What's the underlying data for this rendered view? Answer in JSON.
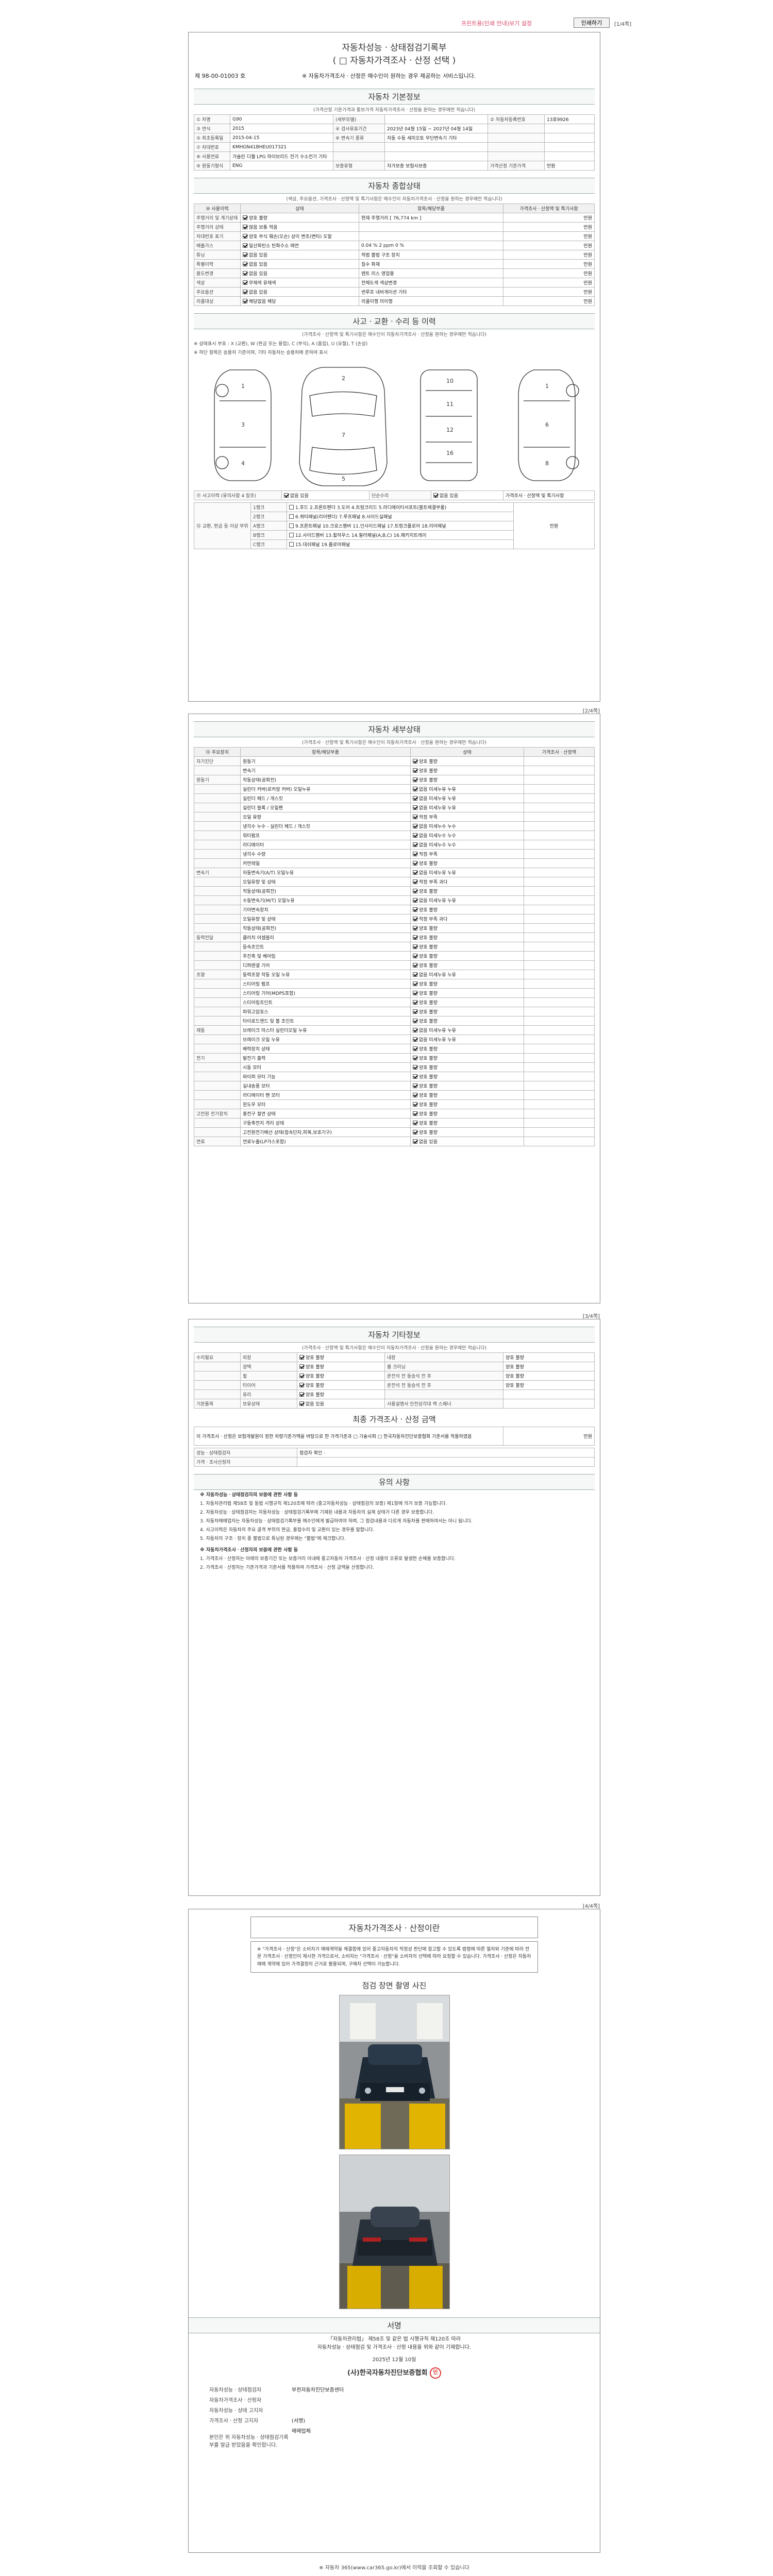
{
  "topbar": {
    "link": "프린트용(인쇄 안내)보기 설정",
    "print_button": "인쇄하기",
    "page_marker": "[1/4쪽]"
  },
  "page1": {
    "title_line1": "자동차성능ㆍ상태점검기록부",
    "title_line2": "( □ 자동차가격조사ㆍ산정 선택 )",
    "doc_no": "제   98-00-01003  호",
    "notice": "※ 자동차가격조사ㆍ산정은 매수인이 원하는 경우 제공하는 서비스입니다.",
    "basic": {
      "head": "자동차 기본정보",
      "sub": "(가격산정 기준가격과 통보가격 자동차가격조사ㆍ산정을 원하는 경우에만 적습니다)",
      "rows": [
        {
          "k": "① 차명",
          "v": "G90",
          "k2": "(세부모델)",
          "v2": "",
          "k3": "② 자동차등록번호",
          "v3": "13호9926"
        },
        {
          "k": "③ 연식",
          "v": "2015",
          "k2": "④ 검사유효기간",
          "v2": "2023년 04월 15일 ~ 2027년 04월 14일",
          "k3": "",
          "v3": ""
        },
        {
          "k": "⑤ 최초등록일",
          "v": "2015-04-15",
          "k2": "⑥ 변속기 종류",
          "v2": "자동  수동  세미오토  무단변속기  기타",
          "k3": "",
          "v3": ""
        },
        {
          "k": "⑦ 차대번호",
          "v": "KMHGN41BHEU017321",
          "k2": "",
          "v2": "",
          "k3": "",
          "v3": ""
        },
        {
          "k": "⑧ 사용연료",
          "v": "가솔린  디젤  LPG  하이브리드  전기  수소전기  기타",
          "k2": "",
          "v2": "",
          "k3": "",
          "v3": ""
        },
        {
          "k": "⑨ 원동기형식",
          "v": "ENG",
          "k2": "보증유형",
          "v2": "자가보증  보험사보증",
          "k3": "가격산정 기준가격",
          "v3": "만원"
        }
      ]
    },
    "summary": {
      "head": "자동차 종합상태",
      "sub": "(색상, 주요옵션, 가격조사ㆍ산정액 및 특기사항은 매수인이 자동차가격조사ㆍ산정을 원하는 경우에만 적습니다)",
      "cols": [
        "⑩ 사용이력",
        "상태",
        "항목/해당부품",
        "가격조사ㆍ산정액 및 특기사항"
      ],
      "rows": [
        {
          "k": "주행거리 및 계기상태",
          "s": "양호  불량",
          "d": "현재 주행거리 [ 76,774 km ]",
          "r": "만원"
        },
        {
          "k": "주행거리 상태",
          "s": "많음  보통  적음",
          "d": "",
          "r": "만원"
        },
        {
          "k": "차대번호 표기",
          "s": "양호  부식  훼손(오손)  상이  변조(변타)  도말",
          "d": "",
          "r": "만원"
        },
        {
          "k": "배출가스",
          "s": "일산화탄소  탄화수소  매연",
          "d": "0.04 %   2 ppm   0 %",
          "r": "만원"
        },
        {
          "k": "튜닝",
          "s": "없음  있음",
          "d": "적법  불법  구조  장치",
          "r": "만원"
        },
        {
          "k": "특별이력",
          "s": "없음  있음",
          "d": "침수  화재",
          "r": "만원"
        },
        {
          "k": "용도변경",
          "s": "없음  있음",
          "d": "렌트  리스  영업용",
          "r": "만원"
        },
        {
          "k": "색상",
          "s": "무채색  유채색",
          "d": "전체도색  색상변경",
          "r": "만원"
        },
        {
          "k": "주요옵션",
          "s": "없음  있음",
          "d": "썬루프  내비게이션  기타",
          "r": "만원"
        },
        {
          "k": "리콜대상",
          "s": "해당없음  해당",
          "d": "리콜이행  미이행",
          "r": "만원"
        }
      ]
    },
    "accident": {
      "head": "사고ㆍ교환ㆍ수리 등 이력",
      "sub": "(가격조사ㆍ산정액 및 특기사항은 매수인이 자동차가격조사ㆍ산정을 원하는 경우에만 적습니다)",
      "legend1": "※ 상태표시 부호 : X (교환), W (판금 또는 용접), C (부식), A (흠집), U (요철), T (손상)",
      "legend2": "※ 하단 항목은 승용차 기준이며, 기타 자동차는 승용차에 준하여 표시",
      "history_label": "⑪ 사고이력 (유의사항 4 참조)",
      "history": "없음  있음",
      "simple": "단순수리",
      "simple_val": "없음  있음",
      "rank_label": "⑫ 교환, 판금 등 이상 부위",
      "right_head": "가격조사ㆍ산정액 및 특기사항",
      "ranks": [
        {
          "k": "1랭크",
          "v": "1.후드  2.프론트펜더  3.도어  4.트렁크리드  5.라디에이터서포트(볼트체결부품)"
        },
        {
          "k": "2랭크",
          "v": "6.쿼터패널(리어펜더)  7.루프패널  8.사이드실패널"
        },
        {
          "k": "A랭크",
          "v": "9.프론트패널  10.크로스멤버  11.인사이드패널  17.트렁크플로어  18.리어패널"
        },
        {
          "k": "B랭크",
          "v": "12.사이드멤버  13.휠하우스  14.필러패널(A,B,C)  16.패키지트레이"
        },
        {
          "k": "C랭크",
          "v": "15.대쉬패널  19.플로어패널"
        }
      ],
      "manwon": "만원"
    }
  },
  "page2": {
    "marker": "[2/4쪽]",
    "head": "자동차 세부상태",
    "sub": "(가격조사ㆍ산정액 및 특기사항은 매수인이 자동차가격조사ㆍ산정을 원하는 경우에만 적습니다)",
    "cols": [
      "⑬ 주요장치",
      "항목/해당부품",
      "상태",
      "가격조사ㆍ산정액"
    ],
    "rows": [
      {
        "g": "자기진단",
        "i": "원동기",
        "s": "양호  불량"
      },
      {
        "g": "",
        "i": "변속기",
        "s": "양호  불량"
      },
      {
        "g": "원동기",
        "i": "작동상태(공회전)",
        "s": "양호  불량"
      },
      {
        "g": "",
        "i": "실린더 커버(로커암 커버) 오일누유",
        "s": "없음  미세누유  누유"
      },
      {
        "g": "",
        "i": "실린더 헤드 / 개스킷",
        "s": "없음  미세누유  누유"
      },
      {
        "g": "",
        "i": "실린더 블록 / 오일팬",
        "s": "없음  미세누유  누유"
      },
      {
        "g": "",
        "i": "오일 유량",
        "s": "적정  부족"
      },
      {
        "g": "",
        "i": "냉각수 누수 - 실린더 헤드 / 개스킷",
        "s": "없음  미세누수  누수"
      },
      {
        "g": "",
        "i": "워터펌프",
        "s": "없음  미세누수  누수"
      },
      {
        "g": "",
        "i": "라디에이터",
        "s": "없음  미세누수  누수"
      },
      {
        "g": "",
        "i": "냉각수 수량",
        "s": "적정  부족"
      },
      {
        "g": "",
        "i": "커먼레일",
        "s": "양호  불량"
      },
      {
        "g": "변속기",
        "i": "자동변속기(A/T) 오일누유",
        "s": "없음  미세누유  누유"
      },
      {
        "g": "",
        "i": "오일유량 및 상태",
        "s": "적정  부족  과다"
      },
      {
        "g": "",
        "i": "작동상태(공회전)",
        "s": "양호  불량"
      },
      {
        "g": "",
        "i": "수동변속기(M/T) 오일누유",
        "s": "없음  미세누유  누유"
      },
      {
        "g": "",
        "i": "기어변속장치",
        "s": "양호  불량"
      },
      {
        "g": "",
        "i": "오일유량 및 상태",
        "s": "적정  부족  과다"
      },
      {
        "g": "",
        "i": "작동상태(공회전)",
        "s": "양호  불량"
      },
      {
        "g": "동력전달",
        "i": "클러치 어셈블리",
        "s": "양호  불량"
      },
      {
        "g": "",
        "i": "등속조인트",
        "s": "양호  불량"
      },
      {
        "g": "",
        "i": "추진축 및 베어링",
        "s": "양호  불량"
      },
      {
        "g": "",
        "i": "디퍼렌셜 기어",
        "s": "양호  불량"
      },
      {
        "g": "조향",
        "i": "동력조향 작동 오일 누유",
        "s": "없음  미세누유  누유"
      },
      {
        "g": "",
        "i": "스티어링 펌프",
        "s": "양호  불량"
      },
      {
        "g": "",
        "i": "스티어링 기어(MDPS포함)",
        "s": "양호  불량"
      },
      {
        "g": "",
        "i": "스티어링조인트",
        "s": "양호  불량"
      },
      {
        "g": "",
        "i": "파워고압호스",
        "s": "양호  불량"
      },
      {
        "g": "",
        "i": "타이로드엔드 및 볼 조인트",
        "s": "양호  불량"
      },
      {
        "g": "제동",
        "i": "브레이크 마스터 실린더오일 누유",
        "s": "없음  미세누유  누유"
      },
      {
        "g": "",
        "i": "브레이크 오일 누유",
        "s": "없음  미세누유  누유"
      },
      {
        "g": "",
        "i": "배력장치 상태",
        "s": "양호  불량"
      },
      {
        "g": "전기",
        "i": "발전기 출력",
        "s": "양호  불량"
      },
      {
        "g": "",
        "i": "시동 모터",
        "s": "양호  불량"
      },
      {
        "g": "",
        "i": "와이퍼 모터 기능",
        "s": "양호  불량"
      },
      {
        "g": "",
        "i": "실내송풍 모터",
        "s": "양호  불량"
      },
      {
        "g": "",
        "i": "라디에이터 팬 모터",
        "s": "양호  불량"
      },
      {
        "g": "",
        "i": "윈도우 모터",
        "s": "양호  불량"
      },
      {
        "g": "고전원 전기장치",
        "i": "충전구 절연 상태",
        "s": "양호  불량"
      },
      {
        "g": "",
        "i": "구동축전지 격리 상태",
        "s": "양호  불량"
      },
      {
        "g": "",
        "i": "고전원전기배선 상태(접속단자,피복,보호기구)",
        "s": "양호  불량"
      },
      {
        "g": "연료",
        "i": "연료누출(LP가스포함)",
        "s": "없음  있음"
      }
    ]
  },
  "page3": {
    "marker": "[3/4쪽]",
    "head": "자동차 기타정보",
    "sub": "(가격조사ㆍ산정액 및 특기사항은 매수인이 자동차가격조사ㆍ산정을 원하는 경우에만 적습니다)",
    "rows": [
      {
        "g": "수리필요",
        "a": "외장",
        "b": "양호  불량",
        "c": "내장",
        "d": "양호  불량"
      },
      {
        "g": "",
        "a": "광택",
        "b": "양호  불량",
        "c": "룸 크리닝",
        "d": "양호  불량"
      },
      {
        "g": "",
        "a": "휠",
        "b": "양호  불량",
        "c": "운전석 전  동승석 전  후",
        "d": "양호  불량"
      },
      {
        "g": "",
        "a": "타이어",
        "b": "양호  불량",
        "c": "운전석 전  동승석 전  후",
        "d": "양호  불량"
      },
      {
        "g": "",
        "a": "유리",
        "b": "양호  불량",
        "c": "",
        "d": ""
      },
      {
        "g": "기본품목",
        "a": "보유상태",
        "b": "없음  있음",
        "c": "사용설명서  안전삼각대  잭  스패너",
        "d": ""
      }
    ],
    "fee_head": "최종 가격조사ㆍ산정 금액",
    "fee_unit": "만원",
    "fee_note": "이 가격조사ㆍ산정은 보험개발원이 정한 차량기준가액을 바탕으로 한 가격기준과 □ 기술사회 □ 한국자동차진단보증협회 기준서를 적용하였음",
    "sign_rows": [
      {
        "k": "성능ㆍ상태점검자",
        "v": "점검자 확인 ·"
      },
      {
        "k": "가격ㆍ조사산정자",
        "v": ""
      }
    ],
    "notes_head": "유의 사항",
    "notes_title1": "※ 자동차성능ㆍ상태점검자의 보증에 관한 사항 등",
    "notes1": [
      "1. 자동차관리법 제58조 및 동법 시행규칙 제120조에 따라 (중고자동차성능ㆍ상태점검의 보증) 제1항에 의거 보증 가능합니다.",
      "2. 자동차성능ㆍ상태점검자는 자동차성능ㆍ상태점검기록부에 기재된 내용과 자동차의 실제 상태가 다른 경우 보증합니다.",
      "3. 자동차매매업자는 자동차성능ㆍ상태점검기록부를 매수인에게 발급하여야 하며, 그 점검내용과 다르게 자동차를 판매하여서는 아니 됩니다.",
      "4. 사고이력은 자동차의 주요 골격 부위의 판금, 용접수리 및 교환이 있는 경우를 말합니다.",
      "5. 자동차의 구조ㆍ장치 중 불법으로 튜닝된 경우에는 \"불법\"에 체크합니다."
    ],
    "notes_title2": "※ 자동차가격조사ㆍ산정자의 보증에 관한 사항 등",
    "notes2": [
      "1. 가격조사ㆍ산정자는 아래의 보증기간 또는 보증거리 이내에 중고자동차 가격조사ㆍ산정 내용의 오류로 발생한 손해를 보증합니다.",
      "2. 가격조사ㆍ산정자는 기준가격과 기준서를 적용하여 가격조사ㆍ산정 금액을 산정합니다."
    ]
  },
  "page4": {
    "marker": "[4/4쪽]",
    "title": "자동차가격조사ㆍ산정이란",
    "desc": "※ \"가격조사ㆍ산정\"은 소비자가 매매계약을 체결함에 있어 중고자동차의 적정성 판단에 참고할 수 있도록 법령에 따른 절차와 기준에 따라 전문 가격조사ㆍ산정인이 제시한 가격으로서, 소비자는 \"가격조사ㆍ산정\"을 소비자의 선택에 따라 요청할 수 있습니다. 가격조사ㆍ산정은 자동차 매매 계약에 있어 가격결정의 근거로 활용되며, 구매자 선택이 가능합니다.",
    "photo_head": "점검 장면 촬영 사진",
    "sign_head": "서명",
    "sign_text1": "「자동차관리법」 제58조 및 같은 법 시행규칙 제120조 따라",
    "sign_text2": "자동차성능ㆍ상태점검 및 가격조사ㆍ산정 내용을 위와 같이 기재합니다.",
    "date": "2025년 12월 10일",
    "company": "(사)한국자동차진단보증협회",
    "signs": [
      {
        "k": "자동차성능ㆍ상태점검자",
        "v": "부천자동차진단보증센터"
      },
      {
        "k": "자동차가격조사ㆍ산정자",
        "v": ""
      },
      {
        "k": "자동차성능ㆍ상태 고지자",
        "v": ""
      },
      {
        "k": "가격조사ㆍ산정 고지자",
        "v": "(서명)"
      },
      {
        "k": "",
        "v": "매매업체"
      },
      {
        "k": "본인은 위 자동차성능ㆍ상태점검기록부를 발급 받았음을 확인합니다.",
        "v": ""
      }
    ],
    "stamp": "인",
    "footnote": "※ 자동차 365(www.car365.go.kr)에서 이력을 조회할 수 있습니다"
  }
}
